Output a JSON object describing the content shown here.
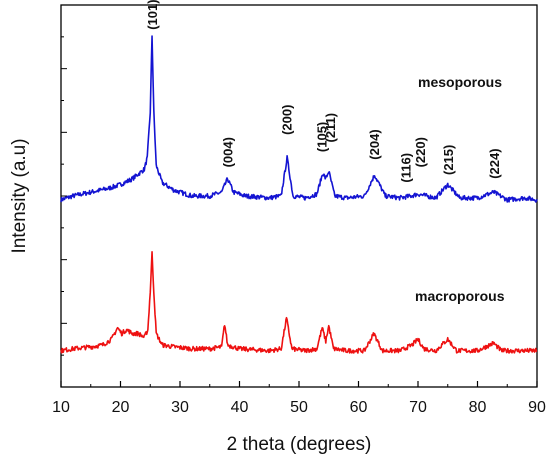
{
  "chart_data": {
    "type": "line",
    "xlabel": "2 theta (degrees)",
    "ylabel": "Intensity (a.u)",
    "xlim": [
      10,
      90
    ],
    "ylim": [
      0,
      1
    ],
    "x_ticks": [
      "10",
      "20",
      "30",
      "40",
      "50",
      "60",
      "70",
      "80",
      "90"
    ],
    "y_tick_labels": "none",
    "grid": false,
    "legend": "none",
    "series": [
      {
        "name": "mesoporous",
        "color": "#1414d2",
        "baseline": 0.49,
        "noise": 0.006,
        "x": [
          10,
          12,
          15,
          18,
          20,
          22,
          24,
          24.5,
          25,
          25.3,
          25.6,
          26,
          27,
          29,
          32,
          35,
          37,
          38,
          39,
          41,
          45,
          47,
          48,
          49,
          51,
          53,
          54,
          54.5,
          55,
          56,
          58,
          61,
          62.7,
          64.5,
          67,
          68.8,
          70,
          71.5,
          73,
          75,
          77,
          80,
          82.7,
          85,
          88,
          90
        ],
        "y": [
          0.49,
          0.5,
          0.51,
          0.52,
          0.53,
          0.545,
          0.57,
          0.6,
          0.72,
          0.92,
          0.72,
          0.58,
          0.535,
          0.515,
          0.5,
          0.5,
          0.51,
          0.545,
          0.51,
          0.5,
          0.495,
          0.5,
          0.6,
          0.5,
          0.495,
          0.505,
          0.56,
          0.545,
          0.565,
          0.5,
          0.495,
          0.5,
          0.555,
          0.5,
          0.495,
          0.5,
          0.505,
          0.5,
          0.495,
          0.53,
          0.495,
          0.495,
          0.51,
          0.49,
          0.495,
          0.49
        ]
      },
      {
        "name": "macroporous",
        "color": "#ee1111",
        "baseline": 0.095,
        "noise": 0.006,
        "x": [
          10,
          12,
          15,
          17,
          18.5,
          19.5,
          20.2,
          21,
          22,
          23,
          24,
          24.6,
          25,
          25.3,
          25.6,
          26,
          27,
          29,
          32,
          35,
          37,
          37.5,
          38,
          40,
          45,
          47,
          47.9,
          48.8,
          51,
          53,
          53.9,
          54.5,
          55,
          55.8,
          58,
          61,
          62.6,
          64,
          67,
          69,
          70,
          71,
          73,
          75,
          76.5,
          80,
          82.7,
          84,
          88,
          90
        ],
        "y": [
          0.095,
          0.1,
          0.105,
          0.11,
          0.125,
          0.155,
          0.14,
          0.15,
          0.14,
          0.14,
          0.13,
          0.15,
          0.25,
          0.35,
          0.25,
          0.14,
          0.11,
          0.105,
          0.1,
          0.1,
          0.105,
          0.165,
          0.11,
          0.1,
          0.095,
          0.1,
          0.18,
          0.1,
          0.095,
          0.1,
          0.155,
          0.12,
          0.16,
          0.1,
          0.095,
          0.095,
          0.14,
          0.095,
          0.095,
          0.11,
          0.125,
          0.1,
          0.095,
          0.125,
          0.095,
          0.095,
          0.115,
          0.095,
          0.095,
          0.095
        ]
      }
    ],
    "annotations": [
      {
        "text": "(101)",
        "x": 25.3,
        "y": 0.935
      },
      {
        "text": "(004)",
        "x": 38.0,
        "y": 0.575
      },
      {
        "text": "(200)",
        "x": 47.9,
        "y": 0.66
      },
      {
        "text": "(105)",
        "x": 53.8,
        "y": 0.615
      },
      {
        "text": "(211)",
        "x": 55.2,
        "y": 0.64
      },
      {
        "text": "(204)",
        "x": 62.6,
        "y": 0.595
      },
      {
        "text": "(116)",
        "x": 67.9,
        "y": 0.535
      },
      {
        "text": "(220)",
        "x": 70.3,
        "y": 0.575
      },
      {
        "text": "(215)",
        "x": 75.0,
        "y": 0.555
      },
      {
        "text": "(224)",
        "x": 82.8,
        "y": 0.545
      }
    ],
    "series_labels": [
      {
        "text": "mesoporous",
        "x": 70.0,
        "y": 0.785
      },
      {
        "text": "macroporous",
        "x": 69.5,
        "y": 0.225
      }
    ]
  }
}
